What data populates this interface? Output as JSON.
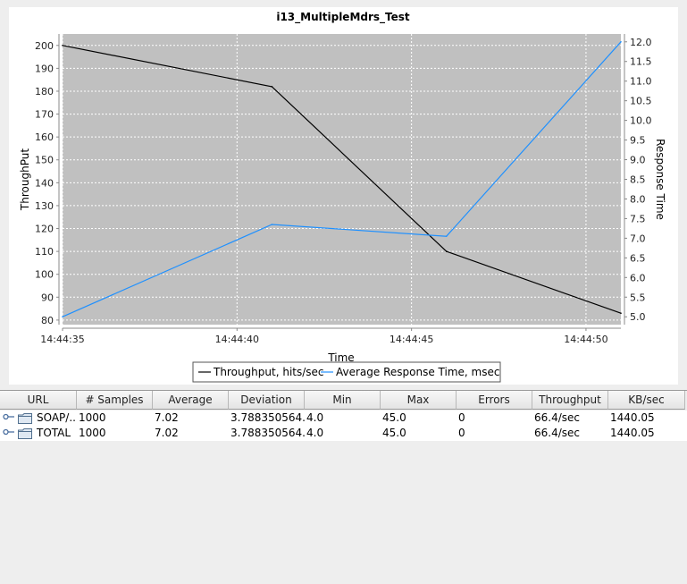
{
  "chart_data": {
    "type": "line",
    "title": "i13_MultipleMdrs_Test",
    "xlabel": "Time",
    "ylabel": "ThroughPut",
    "y2label": "Response Time",
    "x": [
      "14:44:35",
      "14:44:41",
      "14:44:46",
      "14:44:51"
    ],
    "x_ticks": [
      "14:44:35",
      "14:44:40",
      "14:44:45",
      "14:44:50"
    ],
    "xlim": [
      "14:44:35",
      "14:44:51"
    ],
    "ylim": [
      78,
      205
    ],
    "y_ticks": [
      80,
      90,
      100,
      110,
      120,
      130,
      140,
      150,
      160,
      170,
      180,
      190,
      200
    ],
    "y2lim": [
      4.8,
      12.2
    ],
    "y2_ticks": [
      "5.0",
      "5.5",
      "6.0",
      "6.5",
      "7.0",
      "7.5",
      "8.0",
      "8.5",
      "9.0",
      "9.5",
      "10.0",
      "10.5",
      "11.0",
      "11.5",
      "12.0"
    ],
    "grid": true,
    "legend_position": "bottom",
    "series": [
      {
        "name": "Throughput, hits/sec",
        "axis": "left",
        "color": "#000000",
        "values": [
          200,
          182,
          110,
          83
        ]
      },
      {
        "name": "Average Response Time, msec",
        "axis": "right",
        "color": "#1e90ff",
        "values": [
          5.0,
          7.35,
          7.05,
          12.0
        ]
      }
    ],
    "plot_background": "#c0c0c0"
  },
  "table": {
    "columns": [
      "URL",
      "# Samples",
      "Average",
      "Deviation",
      "Min",
      "Max",
      "Errors",
      "Throughput",
      "KB/sec"
    ],
    "rows": [
      {
        "url": "SOAP/...",
        "samples": "1000",
        "average": "7.02",
        "deviation": "3.788350564...",
        "min": "4.0",
        "max": "45.0",
        "errors": "0",
        "throughput": "66.4/sec",
        "kbsec": "1440.05"
      },
      {
        "url": "TOTAL",
        "samples": "1000",
        "average": "7.02",
        "deviation": "3.788350564...",
        "min": "4.0",
        "max": "45.0",
        "errors": "0",
        "throughput": "66.4/sec",
        "kbsec": "1440.05"
      }
    ]
  },
  "icons": {
    "expand": "expand-handle-icon",
    "folder": "folder-icon"
  }
}
